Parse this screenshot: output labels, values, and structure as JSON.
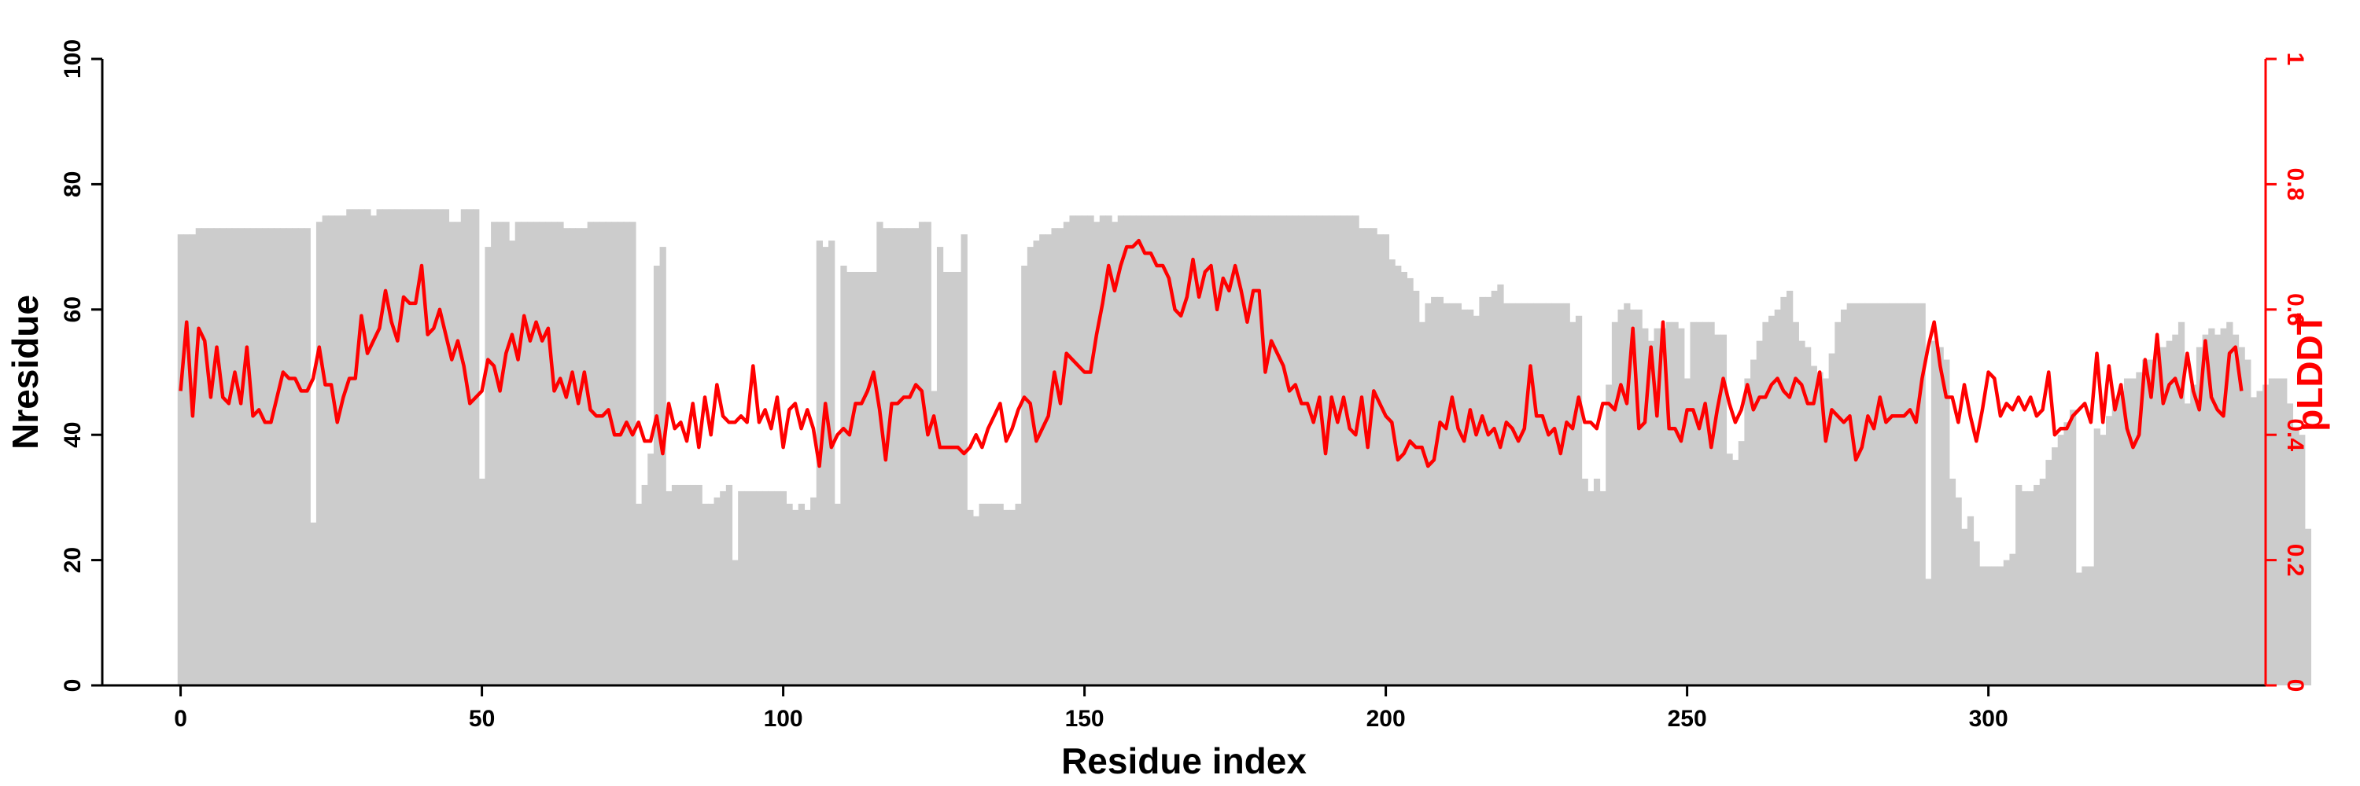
{
  "chart_data": {
    "type": "bar+line",
    "xlabel": "Residue index",
    "ylabel_left": "Nresidue",
    "ylabel_right": "pLDDT",
    "xlim": [
      -13,
      346
    ],
    "ylim_left": [
      0,
      100
    ],
    "ylim_right": [
      0,
      1
    ],
    "x_ticks": [
      0,
      50,
      100,
      150,
      200,
      250,
      300
    ],
    "y_ticks_left": [
      0,
      20,
      40,
      60,
      80,
      100
    ],
    "y_ticks_right": [
      0,
      0.2,
      0.4,
      0.6,
      0.8,
      1
    ],
    "y_tick_labels_right": [
      "0",
      "0.2",
      "0.4",
      "0.6",
      "0.8",
      "1"
    ],
    "grid": false,
    "colors": {
      "bars": "#cccccc",
      "plddt_line": "#ff0000",
      "axis": "#000000"
    },
    "series": [
      {
        "type": "bar",
        "values": [
          72,
          72,
          72,
          73,
          73,
          73,
          73,
          73,
          73,
          73,
          73,
          73,
          73,
          73,
          73,
          73,
          73,
          73,
          73,
          73,
          73,
          73,
          26,
          74,
          75,
          75,
          75,
          75,
          76,
          76,
          76,
          76,
          75,
          76,
          76,
          76,
          76,
          76,
          76,
          76,
          76,
          76,
          76,
          76,
          76,
          74,
          74,
          76,
          76,
          76,
          33,
          70,
          74,
          74,
          74,
          71,
          74,
          74,
          74,
          74,
          74,
          74,
          74,
          74,
          73,
          73,
          73,
          73,
          74,
          74,
          74,
          74,
          74,
          74,
          74,
          74,
          29,
          32,
          37,
          67,
          70,
          31,
          32,
          32,
          32,
          32,
          32,
          29,
          29,
          30,
          31,
          32,
          20,
          31,
          31,
          31,
          31,
          31,
          31,
          31,
          31,
          29,
          28,
          29,
          28,
          30,
          71,
          70,
          71,
          29,
          67,
          66,
          66,
          66,
          66,
          66,
          74,
          73,
          73,
          73,
          73,
          73,
          73,
          74,
          74,
          47,
          70,
          66,
          66,
          66,
          72,
          28,
          27,
          29,
          29,
          29,
          29,
          28,
          28,
          29,
          67,
          70,
          71,
          72,
          72,
          73,
          73,
          74,
          75,
          75,
          75,
          75,
          74,
          75,
          75,
          74,
          75,
          75,
          75,
          75,
          75,
          75,
          75,
          75,
          75,
          75,
          75,
          75,
          75,
          75,
          75,
          75,
          75,
          75,
          75,
          75,
          75,
          75,
          75,
          75,
          75,
          75,
          75,
          75,
          75,
          75,
          75,
          75,
          75,
          75,
          75,
          75,
          75,
          75,
          75,
          75,
          73,
          73,
          73,
          72,
          72,
          68,
          67,
          66,
          65,
          63,
          58,
          61,
          62,
          62,
          61,
          61,
          61,
          60,
          60,
          59,
          62,
          62,
          63,
          64,
          61,
          61,
          61,
          61,
          61,
          61,
          61,
          61,
          61,
          61,
          61,
          58,
          59,
          33,
          31,
          33,
          31,
          48,
          58,
          60,
          61,
          60,
          60,
          57,
          55,
          57,
          57,
          58,
          58,
          57,
          49,
          58,
          58,
          58,
          58,
          56,
          56,
          37,
          36,
          39,
          49,
          52,
          55,
          58,
          59,
          60,
          62,
          63,
          58,
          55,
          54,
          51,
          50,
          49,
          53,
          58,
          60,
          61,
          61,
          61,
          61,
          61,
          61,
          61,
          61,
          61,
          61,
          61,
          61,
          61,
          17,
          55,
          54,
          52,
          33,
          30,
          25,
          27,
          23,
          19,
          19,
          19,
          19,
          20,
          21,
          32,
          31,
          31,
          32,
          33,
          36,
          38,
          40,
          42,
          44,
          18,
          19,
          19,
          41,
          40,
          43,
          45,
          47,
          49,
          49,
          50,
          52,
          52,
          53,
          54,
          55,
          56,
          58,
          45,
          48,
          54,
          56,
          57,
          56,
          57,
          58,
          56,
          54,
          52,
          46,
          47,
          48,
          49,
          49,
          49,
          45,
          41,
          40,
          25
        ]
      },
      {
        "type": "line",
        "name": "pLDDT",
        "values": [
          0.47,
          0.58,
          0.43,
          0.57,
          0.55,
          0.46,
          0.54,
          0.46,
          0.45,
          0.5,
          0.45,
          0.54,
          0.43,
          0.44,
          0.42,
          0.42,
          0.46,
          0.5,
          0.49,
          0.49,
          0.47,
          0.47,
          0.49,
          0.54,
          0.48,
          0.48,
          0.42,
          0.46,
          0.49,
          0.49,
          0.59,
          0.53,
          0.55,
          0.57,
          0.63,
          0.58,
          0.55,
          0.62,
          0.61,
          0.61,
          0.67,
          0.56,
          0.57,
          0.6,
          0.56,
          0.52,
          0.55,
          0.51,
          0.45,
          0.46,
          0.47,
          0.52,
          0.51,
          0.47,
          0.53,
          0.56,
          0.52,
          0.59,
          0.55,
          0.58,
          0.55,
          0.57,
          0.47,
          0.49,
          0.46,
          0.5,
          0.45,
          0.5,
          0.44,
          0.43,
          0.43,
          0.44,
          0.4,
          0.4,
          0.42,
          0.4,
          0.42,
          0.39,
          0.39,
          0.43,
          0.37,
          0.45,
          0.41,
          0.42,
          0.39,
          0.45,
          0.38,
          0.46,
          0.4,
          0.48,
          0.43,
          0.42,
          0.42,
          0.43,
          0.42,
          0.51,
          0.42,
          0.44,
          0.41,
          0.46,
          0.38,
          0.44,
          0.45,
          0.41,
          0.44,
          0.41,
          0.35,
          0.45,
          0.38,
          0.4,
          0.41,
          0.4,
          0.45,
          0.45,
          0.47,
          0.5,
          0.44,
          0.36,
          0.45,
          0.45,
          0.46,
          0.46,
          0.48,
          0.47,
          0.4,
          0.43,
          0.38,
          0.38,
          0.38,
          0.38,
          0.37,
          0.38,
          0.4,
          0.38,
          0.41,
          0.43,
          0.45,
          0.39,
          0.41,
          0.44,
          0.46,
          0.45,
          0.39,
          0.41,
          0.43,
          0.5,
          0.45,
          0.53,
          0.52,
          0.51,
          0.5,
          0.5,
          0.56,
          0.61,
          0.67,
          0.63,
          0.67,
          0.7,
          0.7,
          0.71,
          0.69,
          0.69,
          0.67,
          0.67,
          0.65,
          0.6,
          0.59,
          0.62,
          0.68,
          0.62,
          0.66,
          0.67,
          0.6,
          0.65,
          0.63,
          0.67,
          0.63,
          0.58,
          0.63,
          0.63,
          0.5,
          0.55,
          0.53,
          0.51,
          0.47,
          0.48,
          0.45,
          0.45,
          0.42,
          0.46,
          0.37,
          0.46,
          0.42,
          0.46,
          0.41,
          0.4,
          0.46,
          0.38,
          0.47,
          0.45,
          0.43,
          0.42,
          0.36,
          0.37,
          0.39,
          0.38,
          0.38,
          0.35,
          0.36,
          0.42,
          0.41,
          0.46,
          0.41,
          0.39,
          0.44,
          0.4,
          0.43,
          0.4,
          0.41,
          0.38,
          0.42,
          0.41,
          0.39,
          0.41,
          0.51,
          0.43,
          0.43,
          0.4,
          0.41,
          0.37,
          0.42,
          0.41,
          0.46,
          0.42,
          0.42,
          0.41,
          0.45,
          0.45,
          0.44,
          0.48,
          0.45,
          0.57,
          0.41,
          0.42,
          0.54,
          0.43,
          0.58,
          0.41,
          0.41,
          0.39,
          0.44,
          0.44,
          0.41,
          0.45,
          0.38,
          0.44,
          0.49,
          0.45,
          0.42,
          0.44,
          0.48,
          0.44,
          0.46,
          0.46,
          0.48,
          0.49,
          0.47,
          0.46,
          0.49,
          0.48,
          0.45,
          0.45,
          0.5,
          0.39,
          0.44,
          0.43,
          0.42,
          0.43,
          0.36,
          0.38,
          0.43,
          0.41,
          0.46,
          0.42,
          0.43,
          0.43,
          0.43,
          0.44,
          0.42,
          0.49,
          0.54,
          0.58,
          0.51,
          0.46,
          0.46,
          0.42,
          0.48,
          0.43,
          0.39,
          0.44,
          0.5,
          0.49,
          0.43,
          0.45,
          0.44,
          0.46,
          0.44,
          0.46,
          0.43,
          0.44,
          0.5,
          0.4,
          0.41,
          0.41,
          0.43,
          0.44,
          0.45,
          0.42,
          0.53,
          0.42,
          0.51,
          0.44,
          0.48,
          0.41,
          0.38,
          0.4,
          0.52,
          0.46,
          0.56,
          0.45,
          0.48,
          0.49,
          0.46,
          0.53,
          0.47,
          0.44,
          0.55,
          0.46,
          0.44,
          0.43,
          0.53,
          0.54,
          0.47
        ]
      }
    ]
  }
}
